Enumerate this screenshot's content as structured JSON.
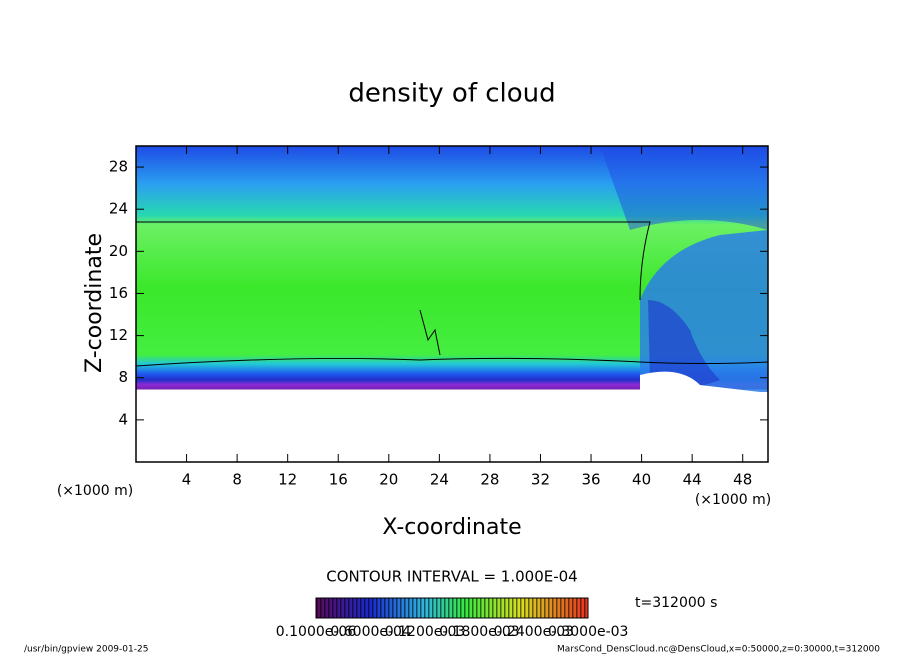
{
  "chart_data": {
    "type": "heatmap",
    "title": "density of cloud",
    "xlabel": "X-coordinate",
    "ylabel": "Z-coordinate",
    "x_unit": "(×1000 m)",
    "y_unit": "(×1000 m)",
    "xlim": [
      0,
      50
    ],
    "ylim": [
      0,
      30
    ],
    "xticks": [
      4,
      8,
      12,
      16,
      20,
      24,
      28,
      32,
      36,
      40,
      44,
      48
    ],
    "yticks": [
      4,
      8,
      12,
      16,
      20,
      24,
      28
    ],
    "contour_interval": "CONTOUR INTERVAL = 1.000E-04",
    "time": "t=312000 s",
    "colorbar_labels": [
      "0.1000e-06",
      "0.6000e-04",
      "0.1200e-03",
      "0.1800e-03",
      "0.2400e-03",
      "0.3000e-03"
    ],
    "footer_left": "/usr/bin/gpview  2009-01-25",
    "footer_right": "MarsCond_DensCloud.nc@DensCloud,x=0:50000,z=0:30000,t=312000"
  }
}
